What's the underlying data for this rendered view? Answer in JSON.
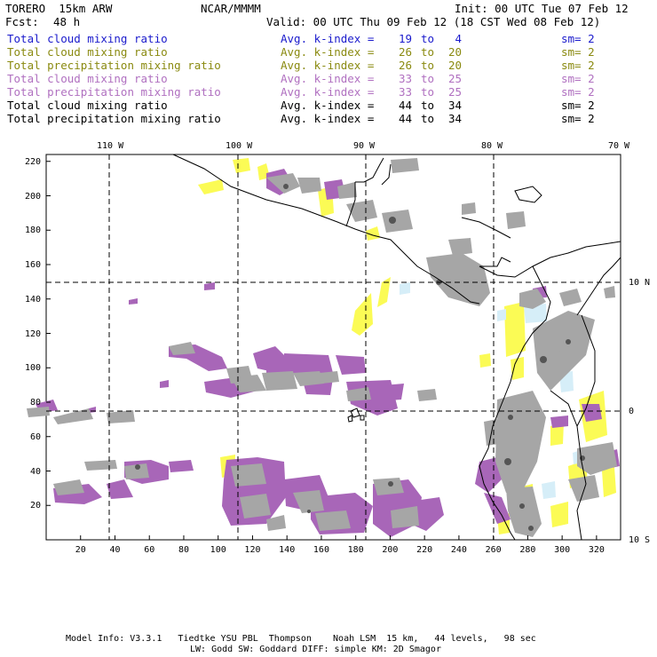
{
  "header": {
    "model": "TORERO  15km ARW",
    "center": "NCAR/MMMM",
    "init": "Init: 00 UTC Tue 07 Feb 12",
    "fcst_label": "Fcst:",
    "fcst_value": "48 h",
    "valid": "Valid: 00 UTC Thu 09 Feb 12 (18 CST Wed 08 Feb 12)"
  },
  "legend": [
    {
      "field": "Total cloud mixing ratio",
      "index_label": "Avg. k-index =",
      "from": "19",
      "to_word": "to",
      "to": "4",
      "sm": "sm= 2",
      "color": "#1a1acc"
    },
    {
      "field": "Total cloud mixing ratio",
      "index_label": "Avg. k-index =",
      "from": "26",
      "to_word": "to",
      "to": "20",
      "sm": "sm= 2",
      "color": "#8a8a10"
    },
    {
      "field": "Total precipitation mixing ratio",
      "index_label": "Avg. k-index =",
      "from": "26",
      "to_word": "to",
      "to": "20",
      "sm": "sm= 2",
      "color": "#8a8a10"
    },
    {
      "field": "Total cloud mixing ratio",
      "index_label": "Avg. k-index =",
      "from": "33",
      "to_word": "to",
      "to": "25",
      "sm": "sm= 2",
      "color": "#b070c0"
    },
    {
      "field": "Total precipitation mixing ratio",
      "index_label": "Avg. k-index =",
      "from": "33",
      "to_word": "to",
      "to": "25",
      "sm": "sm= 2",
      "color": "#b070c0"
    },
    {
      "field": "Total cloud mixing ratio",
      "index_label": "Avg. k-index =",
      "from": "44",
      "to_word": "to",
      "to": "34",
      "sm": "sm= 2",
      "color": "#000000"
    },
    {
      "field": "Total precipitation mixing ratio",
      "index_label": "Avg. k-index =",
      "from": "44",
      "to_word": "to",
      "to": "34",
      "sm": "sm= 2",
      "color": "#000000"
    }
  ],
  "map": {
    "lon_labels": [
      "110 W",
      "100 W",
      "90 W",
      "80 W",
      "70 W"
    ],
    "lat_labels": [
      "10 N",
      "0",
      "10 S"
    ],
    "y_ticks": [
      "220",
      "200",
      "180",
      "160",
      "140",
      "120",
      "100",
      "80",
      "60",
      "40",
      "20"
    ],
    "x_ticks": [
      "20",
      "40",
      "60",
      "80",
      "100",
      "120",
      "140",
      "160",
      "180",
      "200",
      "220",
      "240",
      "260",
      "280",
      "300",
      "320"
    ],
    "colors": {
      "gray": "#a6a6a6",
      "dark_gray": "#555555",
      "purple": "#a866b8",
      "yellow": "#fbfb55",
      "light_blue": "#d6eef8",
      "grid": "#000000"
    }
  },
  "footer": {
    "line1": "Model Info: V3.3.1   Tiedtke YSU PBL  Thompson    Noah LSM  15 km,   44 levels,   98 sec",
    "line2": "LW: Godd SW: Goddard DIFF: simple KM: 2D Smagor"
  }
}
